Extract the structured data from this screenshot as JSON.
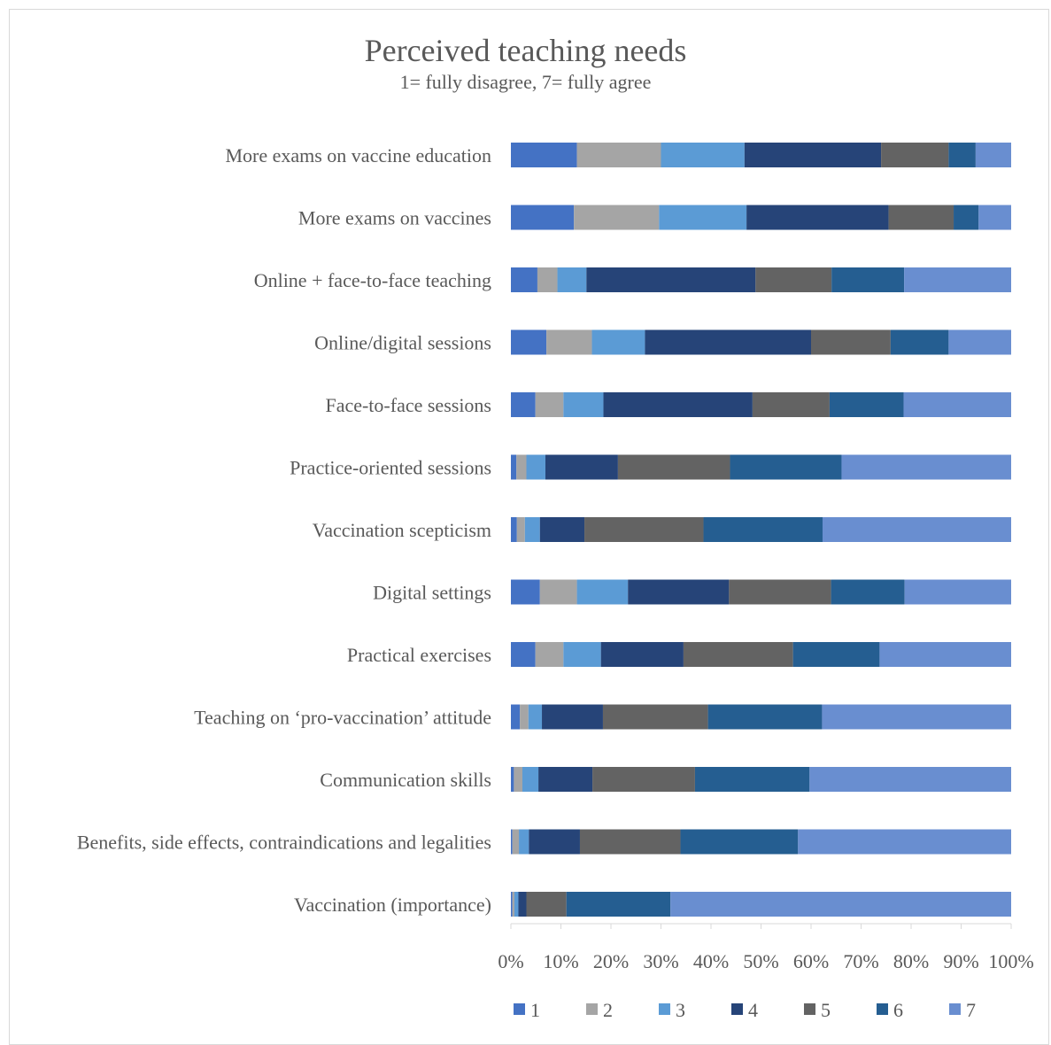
{
  "chart_data": {
    "type": "bar",
    "orientation": "horizontal",
    "stacked": "100%",
    "title": "Perceived teaching needs",
    "subtitle": "1= fully disagree, 7= fully agree",
    "xlim": [
      0,
      100
    ],
    "x_ticks": [
      "0%",
      "10%",
      "20%",
      "30%",
      "40%",
      "50%",
      "60%",
      "70%",
      "80%",
      "90%",
      "100%"
    ],
    "legend_position": "bottom",
    "grid": false,
    "categories": [
      "More exams on vaccine education",
      "More exams on vaccines",
      "Online + face-to-face teaching",
      "Online/digital sessions",
      "Face-to-face sessions",
      "Practice-oriented sessions",
      "Vaccination scepticism",
      "Digital settings",
      "Practical exercises",
      "Teaching on ‘pro-vaccination’ attitude",
      "Communication skills",
      "Benefits, side effects, contraindications and legalities",
      "Vaccination (importance)"
    ],
    "series": [
      {
        "name": "1",
        "color": "#4472C4",
        "values": [
          13.2,
          12.6,
          5.3,
          7.1,
          4.9,
          1.1,
          1.2,
          5.8,
          4.9,
          1.8,
          0.6,
          0.3,
          0.3
        ]
      },
      {
        "name": "2",
        "color": "#A5A5A5",
        "values": [
          16.8,
          17.0,
          4.0,
          9.1,
          5.6,
          2.0,
          1.6,
          7.4,
          5.6,
          1.7,
          1.7,
          1.3,
          0.4
        ]
      },
      {
        "name": "3",
        "color": "#5B9BD5",
        "values": [
          16.7,
          17.5,
          5.8,
          10.6,
          8.0,
          3.8,
          3.0,
          10.2,
          7.5,
          2.7,
          3.2,
          2.0,
          0.8
        ]
      },
      {
        "name": "4",
        "color": "#264478",
        "values": [
          27.3,
          28.4,
          33.8,
          33.2,
          29.8,
          14.5,
          8.9,
          20.2,
          16.5,
          12.2,
          10.8,
          10.2,
          1.6
        ]
      },
      {
        "name": "5",
        "color": "#636363",
        "values": [
          13.5,
          13.0,
          15.2,
          15.9,
          15.4,
          22.4,
          23.8,
          20.4,
          21.9,
          21.0,
          20.5,
          20.1,
          8.0
        ]
      },
      {
        "name": "6",
        "color": "#255E91",
        "values": [
          5.4,
          5.0,
          14.5,
          11.6,
          14.8,
          22.3,
          23.8,
          14.7,
          17.3,
          22.8,
          22.9,
          23.5,
          20.8
        ]
      },
      {
        "name": "7",
        "color": "#698ED0",
        "values": [
          7.1,
          6.5,
          21.4,
          12.5,
          21.5,
          33.9,
          37.7,
          21.3,
          26.3,
          37.8,
          40.3,
          42.6,
          68.1
        ]
      }
    ]
  }
}
